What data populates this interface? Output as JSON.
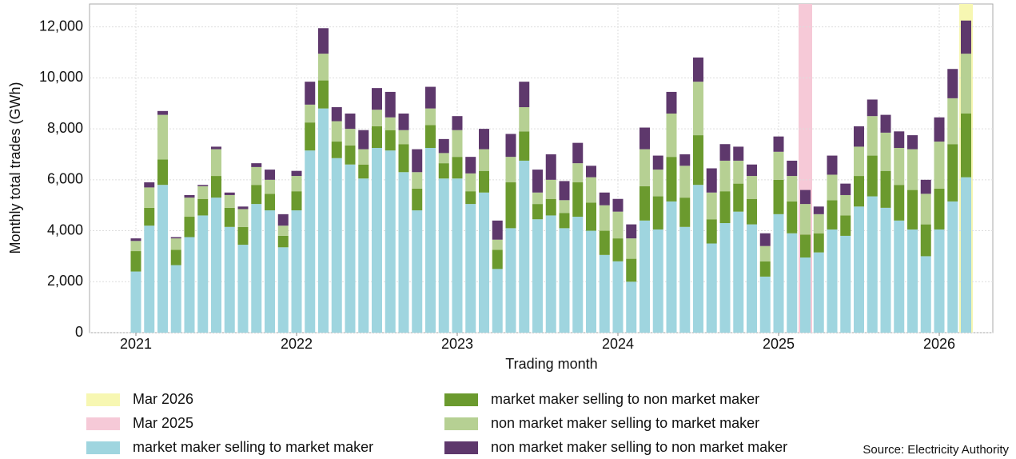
{
  "chart_data": {
    "type": "stacked-bar",
    "xlabel": "Trading month",
    "ylabel": "Monthly total trades (GWh)",
    "source": "Source: Electricity Authority",
    "x": [
      "2021-01",
      "2021-02",
      "2021-03",
      "2021-04",
      "2021-05",
      "2021-06",
      "2021-07",
      "2021-08",
      "2021-09",
      "2021-10",
      "2021-11",
      "2021-12",
      "2022-01",
      "2022-02",
      "2022-03",
      "2022-04",
      "2022-05",
      "2022-06",
      "2022-07",
      "2022-08",
      "2022-09",
      "2022-10",
      "2022-11",
      "2022-12",
      "2023-01",
      "2023-02",
      "2023-03",
      "2023-04",
      "2023-05",
      "2023-06",
      "2023-07",
      "2023-08",
      "2023-09",
      "2023-10",
      "2023-11",
      "2023-12",
      "2024-01",
      "2024-02",
      "2024-03",
      "2024-04",
      "2024-05",
      "2024-06",
      "2024-07",
      "2024-08",
      "2024-09",
      "2024-10",
      "2024-11",
      "2024-12",
      "2025-01",
      "2025-02",
      "2025-03",
      "2025-04",
      "2025-05",
      "2025-06",
      "2025-07",
      "2025-08",
      "2025-09",
      "2025-10",
      "2025-11",
      "2025-12",
      "2026-01",
      "2026-02",
      "2026-03"
    ],
    "xticks": [
      {
        "value": "2021-01",
        "label": "2021"
      },
      {
        "value": "2022-01",
        "label": "2022"
      },
      {
        "value": "2023-01",
        "label": "2023"
      },
      {
        "value": "2024-01",
        "label": "2024"
      },
      {
        "value": "2025-01",
        "label": "2025"
      },
      {
        "value": "2026-01",
        "label": "2026"
      }
    ],
    "ylim": [
      0,
      12900
    ],
    "yticks": [
      0,
      {
        "value": 2000,
        "label": "2,000"
      },
      {
        "value": 4000,
        "label": "4,000"
      },
      {
        "value": 6000,
        "label": "6,000"
      },
      {
        "value": 8000,
        "label": "8,000"
      },
      {
        "value": 10000,
        "label": "10,000"
      },
      {
        "value": 12000,
        "label": "12,000"
      }
    ],
    "grid": true,
    "highlights": [
      {
        "label": "Mar 2026",
        "x": "2026-03",
        "color": "#f7f7b2"
      },
      {
        "label": "Mar 2025",
        "x": "2025-03",
        "color": "#f6c9d7"
      }
    ],
    "series": [
      {
        "name": "market maker selling to market maker",
        "color": "#9fd5df",
        "values": [
          2400,
          4200,
          5800,
          2650,
          3750,
          4600,
          5300,
          4150,
          3450,
          5050,
          4800,
          3350,
          4800,
          7150,
          8800,
          6850,
          6600,
          6050,
          7250,
          7150,
          6300,
          4800,
          7250,
          6050,
          6050,
          5050,
          5500,
          2500,
          4100,
          6750,
          4450,
          4600,
          4100,
          4550,
          4000,
          3050,
          2800,
          2000,
          4400,
          4050,
          5150,
          4150,
          5800,
          3500,
          4300,
          4750,
          4250,
          2200,
          4650,
          3900,
          2950,
          3150,
          4050,
          3800,
          4950,
          5350,
          4900,
          4400,
          4050,
          3000,
          4050,
          5150,
          6100
        ]
      },
      {
        "name": "market maker selling to non market maker",
        "color": "#6b9a2e",
        "values": [
          800,
          700,
          1000,
          600,
          800,
          650,
          850,
          750,
          700,
          750,
          650,
          450,
          750,
          1100,
          1100,
          650,
          750,
          550,
          850,
          800,
          1100,
          850,
          900,
          600,
          850,
          500,
          850,
          750,
          1800,
          1150,
          600,
          650,
          600,
          1350,
          1100,
          950,
          900,
          900,
          1350,
          1300,
          1750,
          1150,
          1950,
          950,
          1250,
          1100,
          1000,
          600,
          1350,
          1250,
          900,
          750,
          1150,
          800,
          1200,
          1600,
          1450,
          1400,
          1550,
          1250,
          1600,
          2250,
          2500
        ]
      },
      {
        "name": "non market maker selling to market maker",
        "color": "#b6d093",
        "values": [
          400,
          800,
          1750,
          450,
          750,
          500,
          1050,
          500,
          700,
          700,
          550,
          400,
          600,
          700,
          1050,
          800,
          650,
          600,
          650,
          500,
          550,
          650,
          650,
          400,
          1050,
          700,
          850,
          400,
          1000,
          950,
          450,
          750,
          500,
          750,
          1000,
          1000,
          1050,
          800,
          1450,
          1050,
          1700,
          1250,
          2100,
          1050,
          1200,
          900,
          900,
          600,
          1100,
          1000,
          1200,
          750,
          1000,
          800,
          1150,
          1550,
          1500,
          1450,
          1600,
          1200,
          1850,
          1800,
          2350
        ]
      },
      {
        "name": "non market maker selling to non market maker",
        "color": "#5e386c",
        "values": [
          100,
          200,
          150,
          50,
          100,
          50,
          100,
          100,
          100,
          150,
          400,
          450,
          200,
          900,
          1000,
          550,
          600,
          750,
          850,
          1000,
          650,
          900,
          850,
          550,
          550,
          650,
          800,
          750,
          900,
          1000,
          900,
          1000,
          750,
          800,
          450,
          500,
          500,
          550,
          850,
          550,
          850,
          450,
          950,
          950,
          650,
          550,
          450,
          500,
          600,
          600,
          550,
          300,
          750,
          450,
          800,
          650,
          700,
          650,
          550,
          550,
          950,
          1150,
          1300
        ]
      }
    ]
  }
}
